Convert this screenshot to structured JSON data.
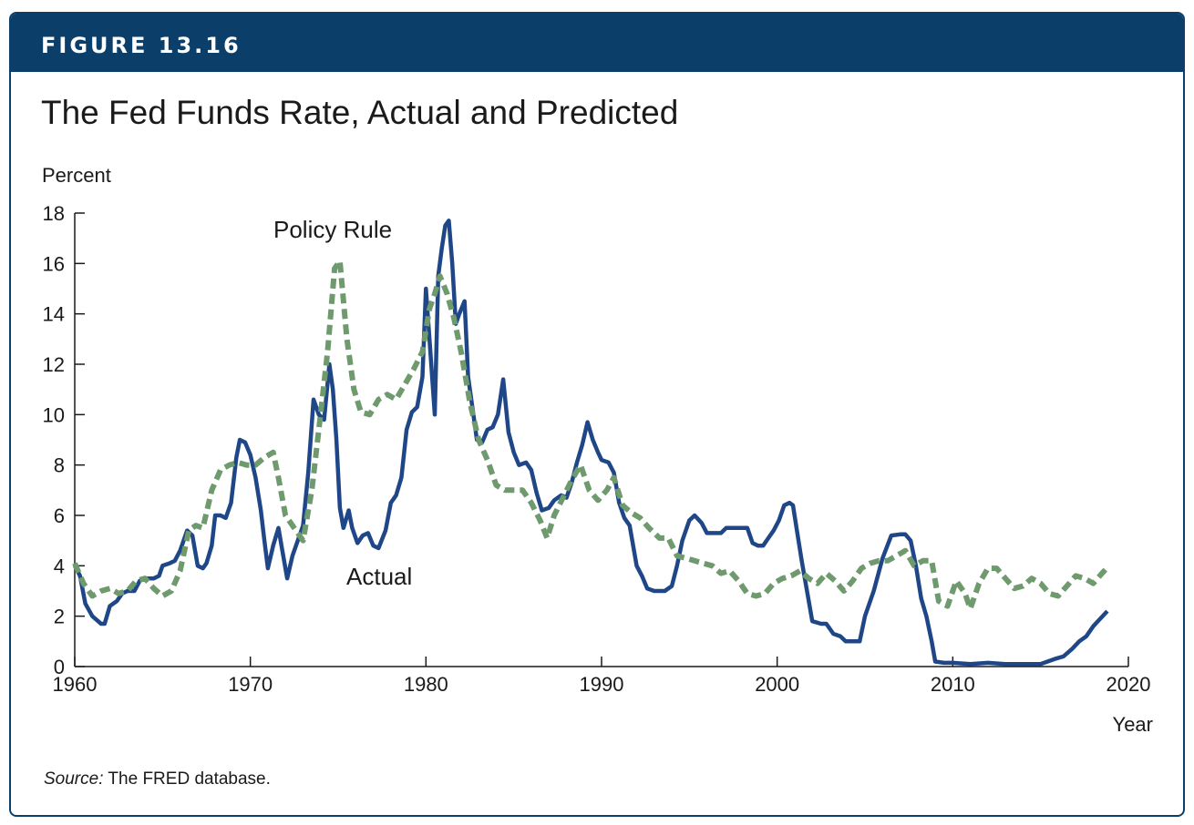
{
  "figure": {
    "label": "FIGURE 13.16",
    "title": "The Fed Funds Rate, Actual and Predicted",
    "source_label": "Source:",
    "source_text": " The FRED database."
  },
  "colors": {
    "banner": "#0b3f6a",
    "actual": "#1f4788",
    "policy_rule": "#6f9a6e"
  },
  "chart_data": {
    "type": "line",
    "xlabel": "Year",
    "ylabel": "Percent",
    "xlim": [
      1960,
      2020
    ],
    "ylim": [
      0,
      18
    ],
    "x_ticks": [
      1960,
      1970,
      1980,
      1990,
      2000,
      2010,
      2020
    ],
    "y_ticks": [
      0,
      2,
      4,
      6,
      8,
      10,
      12,
      14,
      16,
      18
    ],
    "grid": false,
    "series": [
      {
        "name": "Actual",
        "style": "solid",
        "points": [
          [
            1960,
            4.0
          ],
          [
            1960.3,
            3.6
          ],
          [
            1960.6,
            2.5
          ],
          [
            1961,
            2.0
          ],
          [
            1961.5,
            1.7
          ],
          [
            1961.7,
            1.7
          ],
          [
            1962,
            2.4
          ],
          [
            1962.4,
            2.6
          ],
          [
            1962.7,
            2.9
          ],
          [
            1963,
            3.0
          ],
          [
            1963.4,
            3.0
          ],
          [
            1963.7,
            3.4
          ],
          [
            1964,
            3.5
          ],
          [
            1964.5,
            3.5
          ],
          [
            1964.8,
            3.6
          ],
          [
            1965,
            4.0
          ],
          [
            1965.4,
            4.1
          ],
          [
            1965.7,
            4.2
          ],
          [
            1966,
            4.6
          ],
          [
            1966.4,
            5.4
          ],
          [
            1966.7,
            5.2
          ],
          [
            1967,
            4.0
          ],
          [
            1967.3,
            3.9
          ],
          [
            1967.5,
            4.1
          ],
          [
            1967.8,
            4.8
          ],
          [
            1968,
            6.0
          ],
          [
            1968.3,
            6.0
          ],
          [
            1968.6,
            5.9
          ],
          [
            1968.9,
            6.5
          ],
          [
            1969.2,
            8.3
          ],
          [
            1969.4,
            9.0
          ],
          [
            1969.7,
            8.9
          ],
          [
            1970,
            8.4
          ],
          [
            1970.3,
            7.5
          ],
          [
            1970.6,
            6.2
          ],
          [
            1970.8,
            5.0
          ],
          [
            1971.0,
            3.9
          ],
          [
            1971.3,
            4.8
          ],
          [
            1971.6,
            5.5
          ],
          [
            1971.8,
            4.7
          ],
          [
            1972.1,
            3.5
          ],
          [
            1972.4,
            4.4
          ],
          [
            1972.7,
            5.0
          ],
          [
            1973.0,
            5.6
          ],
          [
            1973.3,
            7.7
          ],
          [
            1973.6,
            10.6
          ],
          [
            1973.9,
            10.0
          ],
          [
            1974.2,
            9.8
          ],
          [
            1974.5,
            12.0
          ],
          [
            1974.7,
            11.0
          ],
          [
            1974.9,
            9.0
          ],
          [
            1975.1,
            6.3
          ],
          [
            1975.3,
            5.5
          ],
          [
            1975.6,
            6.2
          ],
          [
            1975.8,
            5.5
          ],
          [
            1976.1,
            4.9
          ],
          [
            1976.4,
            5.2
          ],
          [
            1976.7,
            5.3
          ],
          [
            1977,
            4.8
          ],
          [
            1977.3,
            4.7
          ],
          [
            1977.7,
            5.4
          ],
          [
            1978,
            6.5
          ],
          [
            1978.3,
            6.8
          ],
          [
            1978.6,
            7.5
          ],
          [
            1978.9,
            9.4
          ],
          [
            1979.2,
            10.1
          ],
          [
            1979.5,
            10.3
          ],
          [
            1979.8,
            11.5
          ],
          [
            1980.0,
            15.0
          ],
          [
            1980.2,
            13.0
          ],
          [
            1980.5,
            10.0
          ],
          [
            1980.7,
            15.5
          ],
          [
            1980.9,
            16.6
          ],
          [
            1981.1,
            17.5
          ],
          [
            1981.3,
            17.7
          ],
          [
            1981.5,
            16.0
          ],
          [
            1981.7,
            13.6
          ],
          [
            1981.9,
            14.0
          ],
          [
            1982.2,
            14.5
          ],
          [
            1982.4,
            11.5
          ],
          [
            1982.7,
            10.0
          ],
          [
            1982.9,
            9.0
          ],
          [
            1983.2,
            8.9
          ],
          [
            1983.5,
            9.4
          ],
          [
            1983.8,
            9.5
          ],
          [
            1984.1,
            10.0
          ],
          [
            1984.4,
            11.4
          ],
          [
            1984.7,
            9.3
          ],
          [
            1985,
            8.5
          ],
          [
            1985.3,
            8.0
          ],
          [
            1985.7,
            8.1
          ],
          [
            1986,
            7.8
          ],
          [
            1986.3,
            6.9
          ],
          [
            1986.6,
            6.2
          ],
          [
            1987,
            6.3
          ],
          [
            1987.3,
            6.6
          ],
          [
            1987.7,
            6.8
          ],
          [
            1988,
            6.7
          ],
          [
            1988.3,
            7.3
          ],
          [
            1988.6,
            8.1
          ],
          [
            1988.9,
            8.8
          ],
          [
            1989.2,
            9.7
          ],
          [
            1989.5,
            9.0
          ],
          [
            1989.8,
            8.5
          ],
          [
            1990,
            8.2
          ],
          [
            1990.4,
            8.1
          ],
          [
            1990.7,
            7.7
          ],
          [
            1991,
            6.5
          ],
          [
            1991.3,
            5.9
          ],
          [
            1991.6,
            5.6
          ],
          [
            1992,
            4.0
          ],
          [
            1992.3,
            3.6
          ],
          [
            1992.6,
            3.1
          ],
          [
            1993,
            3.0
          ],
          [
            1993.3,
            3.0
          ],
          [
            1993.6,
            3.0
          ],
          [
            1994,
            3.2
          ],
          [
            1994.3,
            4.0
          ],
          [
            1994.6,
            5.0
          ],
          [
            1995,
            5.8
          ],
          [
            1995.3,
            6.0
          ],
          [
            1995.7,
            5.7
          ],
          [
            1996,
            5.3
          ],
          [
            1996.4,
            5.3
          ],
          [
            1996.8,
            5.3
          ],
          [
            1997.1,
            5.5
          ],
          [
            1997.5,
            5.5
          ],
          [
            1997.9,
            5.5
          ],
          [
            1998.3,
            5.5
          ],
          [
            1998.6,
            4.9
          ],
          [
            1998.9,
            4.8
          ],
          [
            1999.2,
            4.8
          ],
          [
            1999.5,
            5.1
          ],
          [
            1999.8,
            5.4
          ],
          [
            2000.1,
            5.8
          ],
          [
            2000.4,
            6.4
          ],
          [
            2000.7,
            6.5
          ],
          [
            2000.9,
            6.4
          ],
          [
            2001.1,
            5.5
          ],
          [
            2001.4,
            4.2
          ],
          [
            2001.7,
            3.0
          ],
          [
            2002,
            1.8
          ],
          [
            2002.5,
            1.7
          ],
          [
            2002.8,
            1.7
          ],
          [
            2003.2,
            1.3
          ],
          [
            2003.6,
            1.2
          ],
          [
            2003.9,
            1.0
          ],
          [
            2004.3,
            1.0
          ],
          [
            2004.7,
            1.0
          ],
          [
            2005,
            2.0
          ],
          [
            2005.5,
            3.0
          ],
          [
            2006,
            4.3
          ],
          [
            2006.5,
            5.2
          ],
          [
            2007,
            5.25
          ],
          [
            2007.3,
            5.25
          ],
          [
            2007.6,
            5.0
          ],
          [
            2007.9,
            4.0
          ],
          [
            2008.2,
            2.7
          ],
          [
            2008.5,
            2.0
          ],
          [
            2008.8,
            1.0
          ],
          [
            2009,
            0.2
          ],
          [
            2009.5,
            0.15
          ],
          [
            2010,
            0.15
          ],
          [
            2011,
            0.1
          ],
          [
            2012,
            0.15
          ],
          [
            2013,
            0.1
          ],
          [
            2014,
            0.1
          ],
          [
            2015,
            0.1
          ],
          [
            2015.8,
            0.3
          ],
          [
            2016.3,
            0.4
          ],
          [
            2016.8,
            0.7
          ],
          [
            2017.2,
            1.0
          ],
          [
            2017.6,
            1.2
          ],
          [
            2018,
            1.6
          ],
          [
            2018.4,
            1.9
          ],
          [
            2018.8,
            2.2
          ]
        ]
      },
      {
        "name": "Policy Rule",
        "style": "dashed",
        "points": [
          [
            1960,
            4.1
          ],
          [
            1960.5,
            3.3
          ],
          [
            1961,
            2.8
          ],
          [
            1961.5,
            3.0
          ],
          [
            1962,
            3.1
          ],
          [
            1962.5,
            2.9
          ],
          [
            1963,
            3.0
          ],
          [
            1963.5,
            3.4
          ],
          [
            1964,
            3.5
          ],
          [
            1964.5,
            3.1
          ],
          [
            1965,
            2.8
          ],
          [
            1965.5,
            3.0
          ],
          [
            1966,
            3.8
          ],
          [
            1966.5,
            5.4
          ],
          [
            1966.9,
            5.6
          ],
          [
            1967.3,
            5.5
          ],
          [
            1967.8,
            7.0
          ],
          [
            1968.3,
            7.8
          ],
          [
            1968.8,
            8.0
          ],
          [
            1969.3,
            8.1
          ],
          [
            1969.8,
            8.0
          ],
          [
            1970.3,
            8.0
          ],
          [
            1970.8,
            8.3
          ],
          [
            1971.3,
            8.5
          ],
          [
            1971.6,
            7.5
          ],
          [
            1972,
            6.0
          ],
          [
            1972.5,
            5.5
          ],
          [
            1973,
            5.0
          ],
          [
            1973.5,
            7.0
          ],
          [
            1974,
            10.0
          ],
          [
            1974.4,
            12.5
          ],
          [
            1974.8,
            15.8
          ],
          [
            1975.1,
            16.1
          ],
          [
            1975.5,
            13.0
          ],
          [
            1975.9,
            11.0
          ],
          [
            1976.3,
            10.1
          ],
          [
            1976.8,
            10.0
          ],
          [
            1977.3,
            10.6
          ],
          [
            1977.8,
            10.8
          ],
          [
            1978.3,
            10.6
          ],
          [
            1978.8,
            11.2
          ],
          [
            1979.3,
            11.8
          ],
          [
            1979.8,
            12.5
          ],
          [
            1980.2,
            14.2
          ],
          [
            1980.5,
            14.8
          ],
          [
            1980.8,
            15.5
          ],
          [
            1981.2,
            14.8
          ],
          [
            1981.6,
            13.8
          ],
          [
            1982,
            12.5
          ],
          [
            1982.5,
            10.5
          ],
          [
            1983,
            9.0
          ],
          [
            1983.5,
            8.2
          ],
          [
            1984,
            7.2
          ],
          [
            1984.5,
            7.0
          ],
          [
            1985,
            7.0
          ],
          [
            1985.5,
            7.0
          ],
          [
            1986,
            6.5
          ],
          [
            1986.5,
            5.8
          ],
          [
            1986.9,
            5.1
          ],
          [
            1987.3,
            6.0
          ],
          [
            1987.8,
            6.7
          ],
          [
            1988.3,
            7.4
          ],
          [
            1988.8,
            8.0
          ],
          [
            1989.3,
            7.0
          ],
          [
            1989.8,
            6.6
          ],
          [
            1990.3,
            7.0
          ],
          [
            1990.7,
            7.5
          ],
          [
            1991.2,
            6.4
          ],
          [
            1991.7,
            6.1
          ],
          [
            1992.2,
            5.9
          ],
          [
            1992.7,
            5.5
          ],
          [
            1993.3,
            5.1
          ],
          [
            1993.8,
            5.1
          ],
          [
            1994.3,
            4.4
          ],
          [
            1994.8,
            4.3
          ],
          [
            1995.3,
            4.2
          ],
          [
            1995.8,
            4.1
          ],
          [
            1996.3,
            4.0
          ],
          [
            1996.8,
            3.7
          ],
          [
            1997.3,
            3.8
          ],
          [
            1997.8,
            3.4
          ],
          [
            1998.3,
            2.9
          ],
          [
            1998.8,
            2.8
          ],
          [
            1999.3,
            2.9
          ],
          [
            1999.8,
            3.3
          ],
          [
            2000.3,
            3.5
          ],
          [
            2000.8,
            3.6
          ],
          [
            2001.3,
            3.8
          ],
          [
            2001.8,
            3.5
          ],
          [
            2002.3,
            3.3
          ],
          [
            2002.8,
            3.7
          ],
          [
            2003.3,
            3.4
          ],
          [
            2003.8,
            3.0
          ],
          [
            2004.3,
            3.4
          ],
          [
            2004.8,
            3.9
          ],
          [
            2005.3,
            4.1
          ],
          [
            2005.8,
            4.2
          ],
          [
            2006.3,
            4.2
          ],
          [
            2006.8,
            4.4
          ],
          [
            2007.3,
            4.6
          ],
          [
            2007.8,
            4.0
          ],
          [
            2008.3,
            4.2
          ],
          [
            2008.8,
            4.2
          ],
          [
            2009.2,
            2.6
          ],
          [
            2009.7,
            2.4
          ],
          [
            2010.2,
            3.4
          ],
          [
            2010.7,
            2.9
          ],
          [
            2011,
            2.3
          ],
          [
            2011.5,
            3.3
          ],
          [
            2012,
            3.9
          ],
          [
            2012.5,
            3.9
          ],
          [
            2013,
            3.5
          ],
          [
            2013.5,
            3.1
          ],
          [
            2014,
            3.2
          ],
          [
            2014.5,
            3.5
          ],
          [
            2015,
            3.3
          ],
          [
            2015.5,
            2.9
          ],
          [
            2016,
            2.8
          ],
          [
            2016.5,
            3.2
          ],
          [
            2017,
            3.6
          ],
          [
            2017.5,
            3.5
          ],
          [
            2018,
            3.3
          ],
          [
            2018.5,
            3.7
          ],
          [
            2018.9,
            4.0
          ]
        ]
      }
    ],
    "annotations": [
      {
        "text": "Policy Rule",
        "series": "Policy Rule"
      },
      {
        "text": "Actual",
        "series": "Actual"
      }
    ]
  }
}
